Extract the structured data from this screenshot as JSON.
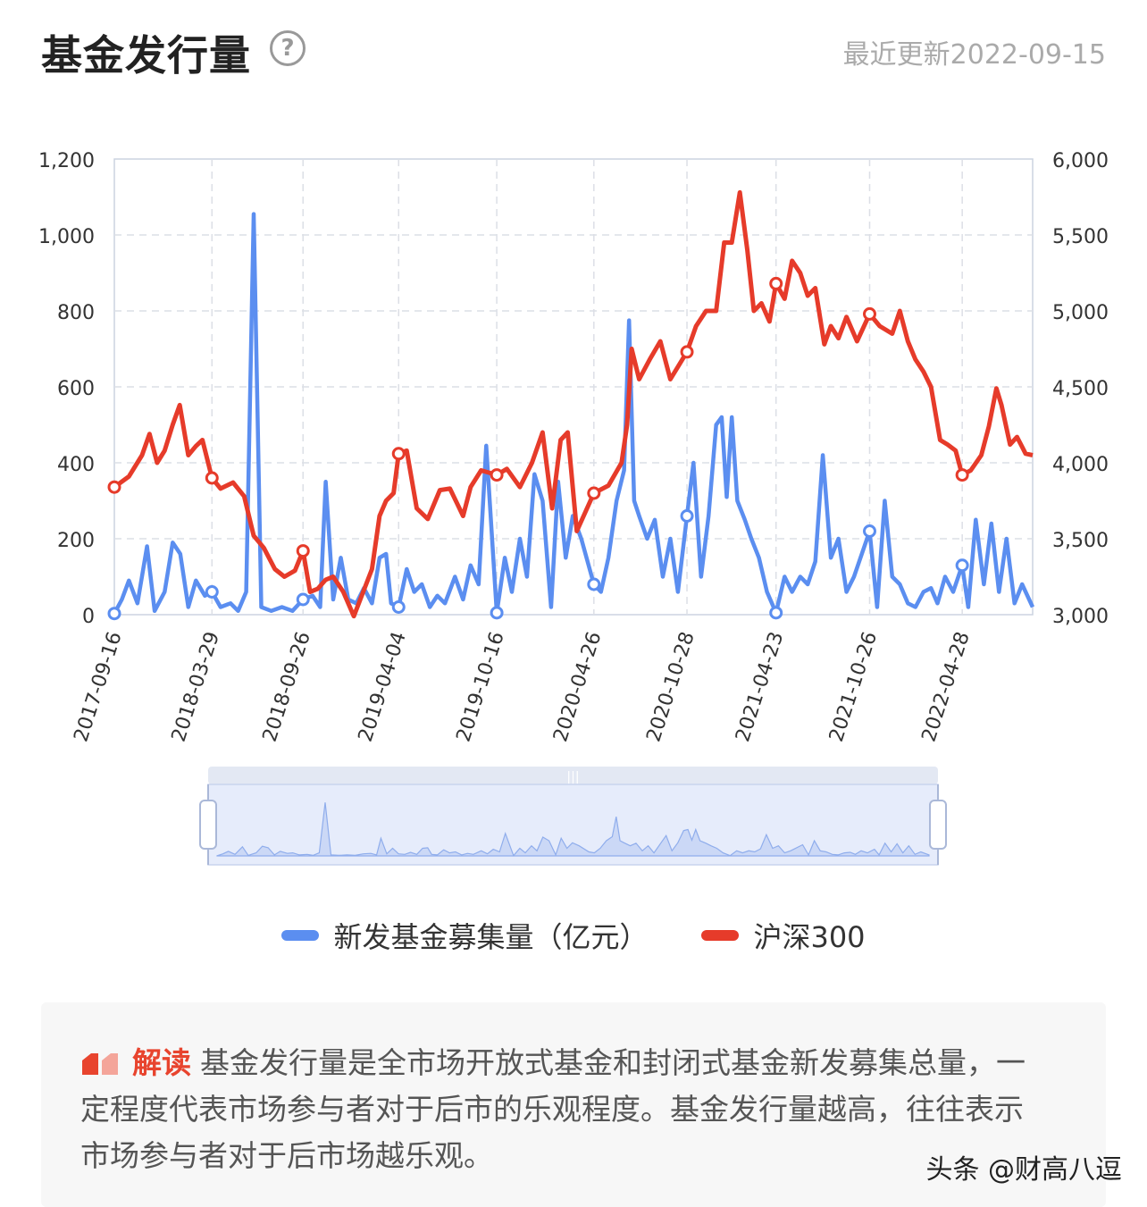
{
  "header": {
    "title": "基金发行量",
    "help_icon": "question-circle-icon",
    "updated": "最近更新2022-09-15"
  },
  "legend": {
    "items": [
      {
        "label": "新发基金募集量（亿元）",
        "color": "#5b8ef0"
      },
      {
        "label": "沪深300",
        "color": "#e63b2a"
      }
    ]
  },
  "note": {
    "icon": "quote-icon",
    "label": "解读",
    "text": "基金发行量是全市场开放式基金和封闭式基金新发募集总量，一定程度代表市场参与者对于后市的乐观程度。基金发行量越高，往往表示市场参与者对于后市场越乐观。"
  },
  "watermark": "头条 @财高八逗",
  "chart_data": {
    "type": "line",
    "x_range": [
      "2017-09-16",
      "2022-09-15"
    ],
    "x_ticks": [
      "2017-09-16",
      "2018-03-29",
      "2018-09-26",
      "2019-04-04",
      "2019-10-16",
      "2020-04-26",
      "2020-10-28",
      "2021-04-23",
      "2021-10-26",
      "2022-04-28"
    ],
    "y_left": {
      "min": 0,
      "max": 1200,
      "ticks": [
        "0",
        "200",
        "400",
        "600",
        "800",
        "1,000",
        "1,200"
      ]
    },
    "y_right": {
      "min": 3000,
      "max": 6000,
      "ticks": [
        "3,000",
        "3,500",
        "4,000",
        "4,500",
        "5,000",
        "5,500",
        "6,000"
      ]
    },
    "grid": true,
    "legend_position": "bottom",
    "has_datazoom": true,
    "colors": {
      "fund": "#5b8ef0",
      "index": "#e63b2a"
    },
    "series": [
      {
        "name": "新发基金募集量（亿元）",
        "axis": "left",
        "points": [
          [
            "2017-09-16",
            3
          ],
          [
            "2017-10-01",
            40
          ],
          [
            "2017-10-15",
            90
          ],
          [
            "2017-11-01",
            30
          ],
          [
            "2017-11-20",
            180
          ],
          [
            "2017-12-05",
            10
          ],
          [
            "2017-12-25",
            60
          ],
          [
            "2018-01-10",
            190
          ],
          [
            "2018-01-25",
            160
          ],
          [
            "2018-02-10",
            20
          ],
          [
            "2018-02-25",
            90
          ],
          [
            "2018-03-15",
            50
          ],
          [
            "2018-03-29",
            60
          ],
          [
            "2018-04-15",
            20
          ],
          [
            "2018-05-05",
            30
          ],
          [
            "2018-05-20",
            10
          ],
          [
            "2018-06-05",
            60
          ],
          [
            "2018-06-20",
            1055
          ],
          [
            "2018-07-05",
            20
          ],
          [
            "2018-07-25",
            10
          ],
          [
            "2018-08-15",
            20
          ],
          [
            "2018-09-05",
            10
          ],
          [
            "2018-09-26",
            40
          ],
          [
            "2018-10-15",
            50
          ],
          [
            "2018-10-30",
            20
          ],
          [
            "2018-11-10",
            350
          ],
          [
            "2018-11-25",
            40
          ],
          [
            "2018-12-10",
            150
          ],
          [
            "2018-12-25",
            40
          ],
          [
            "2019-01-10",
            30
          ],
          [
            "2019-01-25",
            70
          ],
          [
            "2019-02-10",
            30
          ],
          [
            "2019-02-25",
            150
          ],
          [
            "2019-03-10",
            160
          ],
          [
            "2019-03-20",
            30
          ],
          [
            "2019-04-04",
            20
          ],
          [
            "2019-04-20",
            120
          ],
          [
            "2019-05-05",
            60
          ],
          [
            "2019-05-20",
            80
          ],
          [
            "2019-06-05",
            20
          ],
          [
            "2019-06-20",
            50
          ],
          [
            "2019-07-05",
            30
          ],
          [
            "2019-07-25",
            100
          ],
          [
            "2019-08-10",
            40
          ],
          [
            "2019-08-25",
            130
          ],
          [
            "2019-09-10",
            80
          ],
          [
            "2019-09-25",
            445
          ],
          [
            "2019-10-16",
            5
          ],
          [
            "2019-11-01",
            150
          ],
          [
            "2019-11-15",
            60
          ],
          [
            "2019-12-01",
            200
          ],
          [
            "2019-12-15",
            100
          ],
          [
            "2019-12-30",
            370
          ],
          [
            "2020-01-15",
            300
          ],
          [
            "2020-02-01",
            20
          ],
          [
            "2020-02-15",
            350
          ],
          [
            "2020-03-01",
            150
          ],
          [
            "2020-03-15",
            260
          ],
          [
            "2020-04-01",
            200
          ],
          [
            "2020-04-26",
            80
          ],
          [
            "2020-05-10",
            60
          ],
          [
            "2020-05-25",
            150
          ],
          [
            "2020-06-10",
            300
          ],
          [
            "2020-06-25",
            380
          ],
          [
            "2020-07-05",
            775
          ],
          [
            "2020-07-15",
            300
          ],
          [
            "2020-07-25",
            260
          ],
          [
            "2020-08-10",
            200
          ],
          [
            "2020-08-25",
            250
          ],
          [
            "2020-09-10",
            100
          ],
          [
            "2020-09-25",
            200
          ],
          [
            "2020-10-10",
            60
          ],
          [
            "2020-10-28",
            260
          ],
          [
            "2020-11-10",
            400
          ],
          [
            "2020-11-25",
            100
          ],
          [
            "2020-12-10",
            260
          ],
          [
            "2020-12-25",
            500
          ],
          [
            "2021-01-05",
            520
          ],
          [
            "2021-01-15",
            310
          ],
          [
            "2021-01-25",
            520
          ],
          [
            "2021-02-05",
            300
          ],
          [
            "2021-02-20",
            250
          ],
          [
            "2021-03-05",
            200
          ],
          [
            "2021-03-20",
            150
          ],
          [
            "2021-04-05",
            60
          ],
          [
            "2021-04-23",
            5
          ],
          [
            "2021-05-10",
            100
          ],
          [
            "2021-05-25",
            60
          ],
          [
            "2021-06-10",
            100
          ],
          [
            "2021-06-25",
            80
          ],
          [
            "2021-07-10",
            140
          ],
          [
            "2021-07-25",
            420
          ],
          [
            "2021-08-10",
            150
          ],
          [
            "2021-08-25",
            200
          ],
          [
            "2021-09-10",
            60
          ],
          [
            "2021-09-25",
            100
          ],
          [
            "2021-10-26",
            220
          ],
          [
            "2021-11-10",
            20
          ],
          [
            "2021-11-25",
            300
          ],
          [
            "2021-12-10",
            100
          ],
          [
            "2021-12-25",
            80
          ],
          [
            "2022-01-10",
            30
          ],
          [
            "2022-01-25",
            20
          ],
          [
            "2022-02-10",
            60
          ],
          [
            "2022-02-25",
            70
          ],
          [
            "2022-03-10",
            30
          ],
          [
            "2022-03-25",
            100
          ],
          [
            "2022-04-10",
            60
          ],
          [
            "2022-04-28",
            130
          ],
          [
            "2022-05-10",
            20
          ],
          [
            "2022-05-25",
            250
          ],
          [
            "2022-06-10",
            80
          ],
          [
            "2022-06-25",
            240
          ],
          [
            "2022-07-10",
            60
          ],
          [
            "2022-07-25",
            200
          ],
          [
            "2022-08-10",
            30
          ],
          [
            "2022-08-25",
            80
          ],
          [
            "2022-09-15",
            20
          ]
        ]
      },
      {
        "name": "沪深300",
        "axis": "right",
        "points": [
          [
            "2017-09-16",
            3840
          ],
          [
            "2017-10-15",
            3910
          ],
          [
            "2017-11-10",
            4050
          ],
          [
            "2017-11-25",
            4190
          ],
          [
            "2017-12-10",
            4000
          ],
          [
            "2017-12-25",
            4080
          ],
          [
            "2018-01-10",
            4250
          ],
          [
            "2018-01-24",
            4380
          ],
          [
            "2018-02-10",
            4050
          ],
          [
            "2018-02-25",
            4110
          ],
          [
            "2018-03-10",
            4150
          ],
          [
            "2018-03-29",
            3900
          ],
          [
            "2018-04-15",
            3830
          ],
          [
            "2018-05-10",
            3870
          ],
          [
            "2018-06-01",
            3780
          ],
          [
            "2018-06-20",
            3520
          ],
          [
            "2018-07-10",
            3440
          ],
          [
            "2018-08-01",
            3300
          ],
          [
            "2018-08-20",
            3250
          ],
          [
            "2018-09-10",
            3290
          ],
          [
            "2018-09-26",
            3420
          ],
          [
            "2018-10-10",
            3150
          ],
          [
            "2018-10-25",
            3170
          ],
          [
            "2018-11-10",
            3230
          ],
          [
            "2018-11-25",
            3250
          ],
          [
            "2018-12-15",
            3150
          ],
          [
            "2019-01-05",
            2990
          ],
          [
            "2019-01-20",
            3120
          ],
          [
            "2019-02-10",
            3300
          ],
          [
            "2019-02-25",
            3650
          ],
          [
            "2019-03-10",
            3750
          ],
          [
            "2019-03-25",
            3800
          ],
          [
            "2019-04-04",
            4060
          ],
          [
            "2019-04-20",
            4080
          ],
          [
            "2019-05-10",
            3700
          ],
          [
            "2019-06-01",
            3630
          ],
          [
            "2019-06-25",
            3820
          ],
          [
            "2019-07-15",
            3830
          ],
          [
            "2019-08-10",
            3650
          ],
          [
            "2019-08-25",
            3840
          ],
          [
            "2019-09-15",
            3950
          ],
          [
            "2019-10-16",
            3920
          ],
          [
            "2019-11-05",
            3960
          ],
          [
            "2019-12-01",
            3840
          ],
          [
            "2019-12-25",
            4000
          ],
          [
            "2020-01-15",
            4200
          ],
          [
            "2020-02-03",
            3700
          ],
          [
            "2020-02-20",
            4150
          ],
          [
            "2020-03-05",
            4200
          ],
          [
            "2020-03-23",
            3550
          ],
          [
            "2020-04-26",
            3800
          ],
          [
            "2020-05-25",
            3850
          ],
          [
            "2020-06-20",
            4000
          ],
          [
            "2020-07-01",
            4250
          ],
          [
            "2020-07-10",
            4750
          ],
          [
            "2020-07-25",
            4550
          ],
          [
            "2020-08-15",
            4680
          ],
          [
            "2020-09-05",
            4800
          ],
          [
            "2020-09-25",
            4550
          ],
          [
            "2020-10-28",
            4730
          ],
          [
            "2020-11-15",
            4900
          ],
          [
            "2020-12-05",
            5000
          ],
          [
            "2020-12-25",
            5000
          ],
          [
            "2021-01-10",
            5450
          ],
          [
            "2021-01-25",
            5450
          ],
          [
            "2021-02-10",
            5780
          ],
          [
            "2021-02-25",
            5400
          ],
          [
            "2021-03-10",
            5000
          ],
          [
            "2021-03-25",
            5050
          ],
          [
            "2021-04-10",
            4930
          ],
          [
            "2021-04-23",
            5180
          ],
          [
            "2021-05-10",
            5080
          ],
          [
            "2021-05-25",
            5330
          ],
          [
            "2021-06-10",
            5250
          ],
          [
            "2021-06-25",
            5100
          ],
          [
            "2021-07-10",
            5150
          ],
          [
            "2021-07-28",
            4780
          ],
          [
            "2021-08-10",
            4900
          ],
          [
            "2021-08-25",
            4820
          ],
          [
            "2021-09-10",
            4960
          ],
          [
            "2021-10-01",
            4800
          ],
          [
            "2021-10-26",
            4980
          ],
          [
            "2021-11-15",
            4900
          ],
          [
            "2021-12-10",
            4850
          ],
          [
            "2021-12-25",
            5000
          ],
          [
            "2022-01-10",
            4800
          ],
          [
            "2022-01-25",
            4680
          ],
          [
            "2022-02-10",
            4600
          ],
          [
            "2022-02-25",
            4500
          ],
          [
            "2022-03-15",
            4150
          ],
          [
            "2022-03-30",
            4120
          ],
          [
            "2022-04-15",
            4080
          ],
          [
            "2022-04-28",
            3920
          ],
          [
            "2022-05-15",
            3950
          ],
          [
            "2022-06-05",
            4050
          ],
          [
            "2022-06-20",
            4240
          ],
          [
            "2022-07-05",
            4490
          ],
          [
            "2022-07-15",
            4380
          ],
          [
            "2022-08-01",
            4120
          ],
          [
            "2022-08-15",
            4170
          ],
          [
            "2022-09-01",
            4060
          ],
          [
            "2022-09-15",
            4050
          ]
        ]
      }
    ],
    "markers": {
      "fund": [
        "2017-09-16",
        "2018-03-29",
        "2018-09-26",
        "2019-04-04",
        "2019-10-16",
        "2020-04-26",
        "2020-10-28",
        "2021-04-23",
        "2021-10-26",
        "2022-04-28"
      ],
      "index": [
        "2017-09-16",
        "2018-03-29",
        "2018-09-26",
        "2019-04-04",
        "2019-10-16",
        "2020-04-26",
        "2020-10-28",
        "2021-04-23",
        "2021-10-26",
        "2022-04-28"
      ]
    }
  }
}
